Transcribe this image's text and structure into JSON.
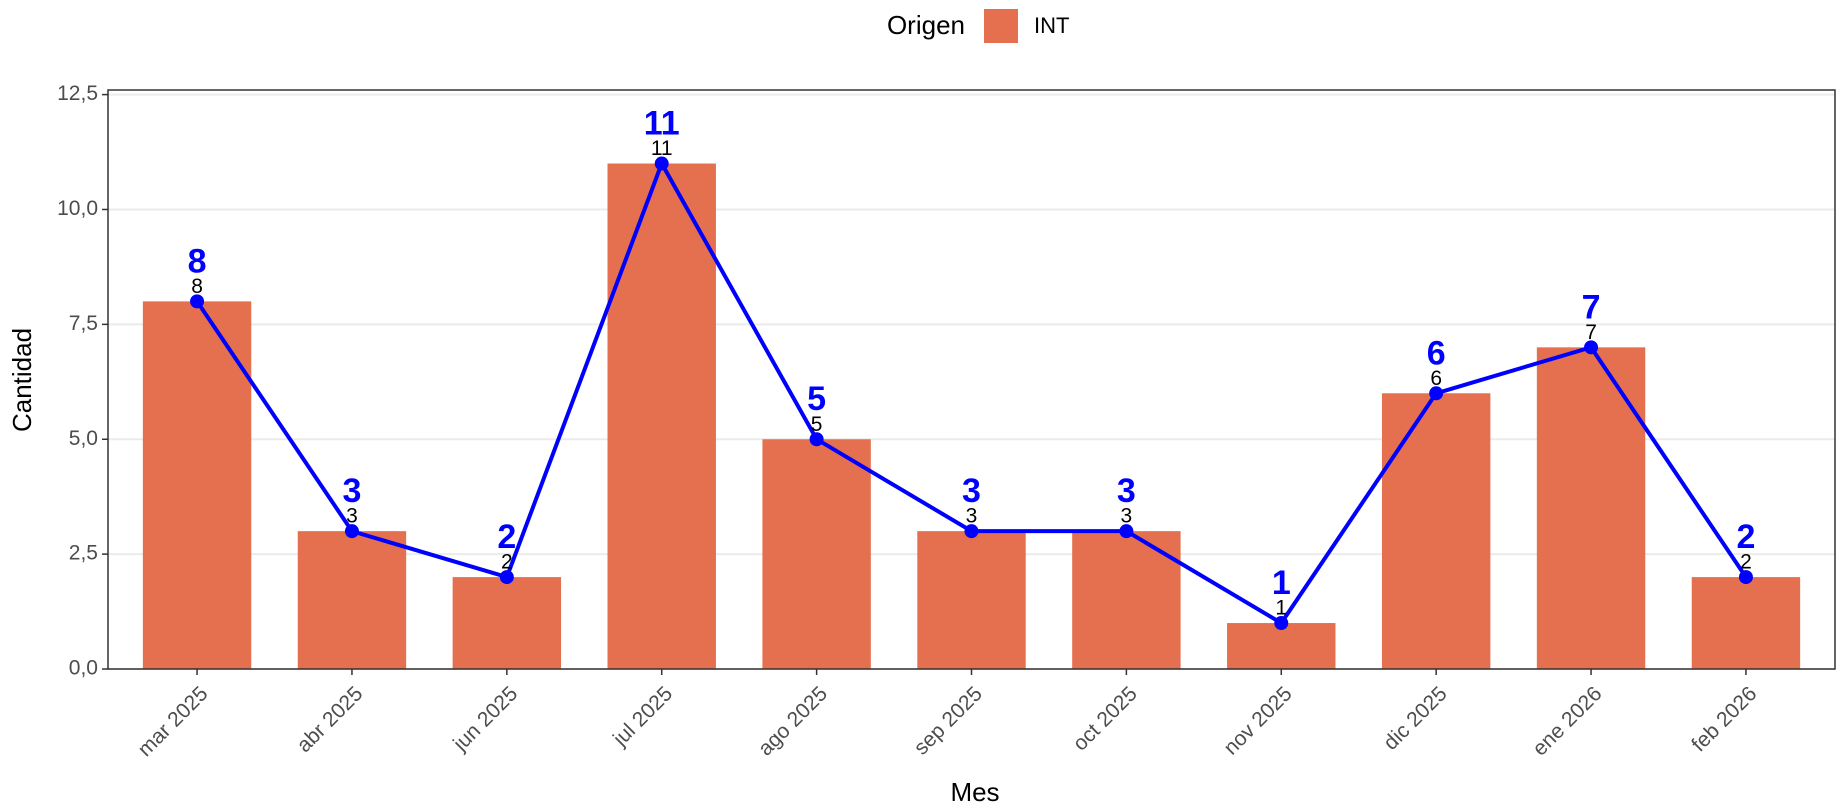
{
  "chart_data": {
    "type": "bar",
    "legend_title": "Origen",
    "xlabel": "Mes",
    "ylabel": "Cantidad",
    "categories": [
      "mar 2025",
      "abr 2025",
      "jun 2025",
      "jul 2025",
      "ago 2025",
      "sep 2025",
      "oct 2025",
      "nov 2025",
      "dic 2025",
      "ene 2026",
      "feb 2026"
    ],
    "series": [
      {
        "name": "INT",
        "color": "#e5704f",
        "values": [
          8,
          3,
          2,
          11,
          5,
          3,
          3,
          1,
          6,
          7,
          2
        ]
      }
    ],
    "line": {
      "color": "#0000ff",
      "values": [
        8,
        3,
        2,
        11,
        5,
        3,
        3,
        1,
        6,
        7,
        2
      ]
    },
    "ylim": [
      0,
      12.6
    ],
    "yticks": [
      {
        "value": 0,
        "label": "0,0"
      },
      {
        "value": 2.5,
        "label": "2,5"
      },
      {
        "value": 5,
        "label": "5,0"
      },
      {
        "value": 7.5,
        "label": "7,5"
      },
      {
        "value": 10,
        "label": "10,0"
      },
      {
        "value": 12.5,
        "label": "12,5"
      }
    ],
    "grid": true
  }
}
